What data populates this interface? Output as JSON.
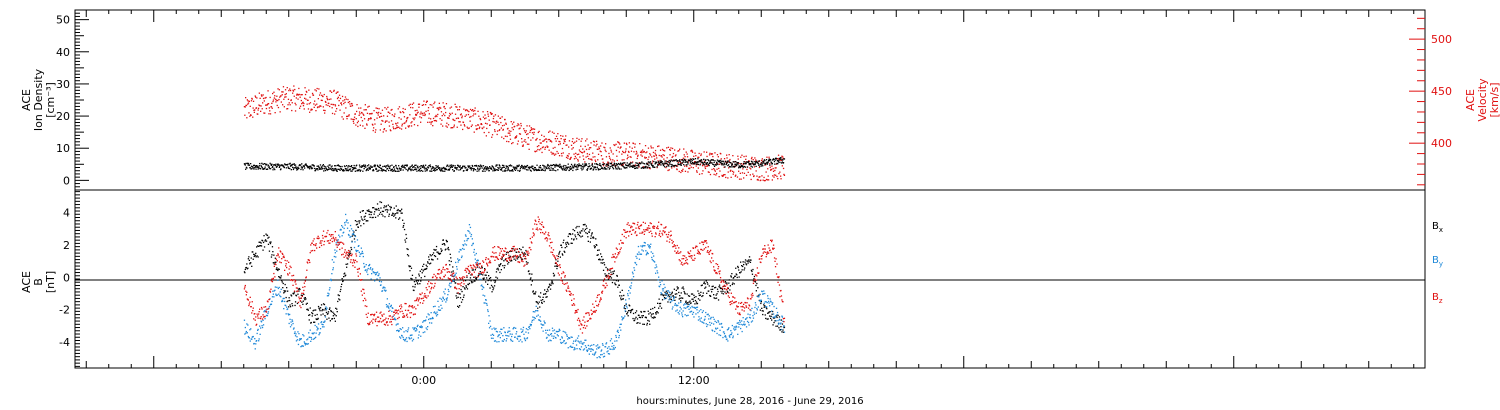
{
  "colors": {
    "black": "#000000",
    "red": "#e01010",
    "blue": "#1e88d8"
  },
  "chart_data": [
    {
      "type": "scatter",
      "panel": "top",
      "ylabel": [
        "ACE",
        "Ion Density",
        "[cm⁻³]"
      ],
      "ylabel_right": [
        "ACE",
        "Velocity",
        "[km/s]"
      ],
      "ylim": [
        -3,
        53
      ],
      "ylim_right": [
        355,
        528
      ],
      "yticks": [
        0,
        10,
        20,
        30,
        40,
        50
      ],
      "yticks_right": [
        400,
        450,
        500
      ],
      "series": [
        {
          "axis": "left",
          "color": "black",
          "values_hours": [
            -8,
            -6,
            -4,
            -2,
            0,
            2,
            4,
            6,
            8,
            10,
            12,
            13,
            14,
            15,
            16
          ],
          "values": [
            4.5,
            4.5,
            4.0,
            4.0,
            4.0,
            4.0,
            4.0,
            4.2,
            4.5,
            5.0,
            6.0,
            5.5,
            5.0,
            5.5,
            6.5
          ]
        },
        {
          "axis": "right",
          "color": "red",
          "values_hours": [
            -8,
            -7,
            -6,
            -5,
            -4,
            -3,
            -2,
            -1,
            0,
            1,
            2,
            3,
            4,
            5,
            6,
            7,
            8,
            9,
            10,
            11,
            12,
            13,
            14,
            15,
            16
          ],
          "values": [
            432,
            440,
            444,
            442,
            440,
            428,
            422,
            426,
            430,
            428,
            424,
            418,
            410,
            404,
            400,
            394,
            390,
            390,
            388,
            386,
            382,
            380,
            378,
            376,
            378
          ]
        }
      ]
    },
    {
      "type": "scatter",
      "panel": "bottom",
      "ylabel": [
        "ACE",
        "B",
        "[nT]"
      ],
      "ylim": [
        -5.6,
        5.4
      ],
      "yticks": [
        -4,
        -2,
        0,
        2,
        4
      ],
      "legend": [
        {
          "text": "B",
          "sub": "x",
          "color": "black"
        },
        {
          "text": "B",
          "sub": "y",
          "color": "blue"
        },
        {
          "text": "B",
          "sub": "z",
          "color": "red"
        }
      ],
      "series": [
        {
          "color": "black",
          "values_hours": [
            -8,
            -7.5,
            -7,
            -6.5,
            -6,
            -5.5,
            -5,
            -4.5,
            -4,
            -3.5,
            -3,
            -2.5,
            -2,
            -1.5,
            -1,
            -0.5,
            0,
            0.5,
            1,
            1.5,
            2,
            2.5,
            3,
            3.5,
            4,
            4.5,
            5,
            5.5,
            6,
            6.5,
            7,
            7.5,
            8,
            8.5,
            9,
            9.5,
            10,
            10.5,
            11,
            11.5,
            12,
            12.5,
            13,
            13.5,
            14,
            14.5,
            15,
            15.5,
            16
          ],
          "values": [
            0.5,
            1.5,
            2.5,
            0.5,
            -1.5,
            -1.0,
            -2.5,
            -2.0,
            -2.5,
            0.5,
            3.5,
            4.0,
            4.3,
            4.0,
            4.0,
            -0.5,
            0.5,
            1.5,
            2.2,
            -1.5,
            0.0,
            0.5,
            -0.5,
            1.0,
            1.5,
            1.5,
            -1.5,
            -1.0,
            1.5,
            2.5,
            3.0,
            2.5,
            0.5,
            0.0,
            -2.0,
            -2.5,
            -2.5,
            -1.5,
            -1.0,
            -1.0,
            -1.5,
            -0.5,
            -1.0,
            -0.5,
            0.5,
            1.0,
            -2.0,
            -2.5,
            -3.0
          ]
        },
        {
          "color": "blue",
          "values_hours": [
            -8,
            -7.5,
            -7,
            -6.5,
            -6,
            -5.5,
            -5,
            -4.5,
            -4,
            -3.5,
            -3,
            -2.5,
            -2,
            -1.5,
            -1,
            -0.5,
            0,
            0.5,
            1,
            1.5,
            2,
            2.5,
            3,
            3.5,
            4,
            4.5,
            5,
            5.5,
            6,
            6.5,
            7,
            7.5,
            8,
            8.5,
            9,
            9.5,
            10,
            10.5,
            11,
            11.5,
            12,
            12.5,
            13,
            13.5,
            14,
            14.5,
            15,
            15.5,
            16
          ],
          "values": [
            -3.0,
            -4.0,
            -2.0,
            -0.5,
            -2.5,
            -4.0,
            -3.5,
            -3.0,
            1.5,
            3.5,
            2.0,
            0.5,
            0.0,
            -2.0,
            -3.5,
            -3.5,
            -3.0,
            -2.0,
            -1.0,
            1.0,
            3.0,
            0.0,
            -3.5,
            -3.5,
            -3.5,
            -3.5,
            -2.0,
            -3.5,
            -3.5,
            -4.0,
            -4.0,
            -4.5,
            -4.5,
            -4.0,
            -1.5,
            1.5,
            2.0,
            -0.5,
            -1.5,
            -2.0,
            -2.0,
            -2.5,
            -3.0,
            -3.5,
            -3.0,
            -2.5,
            -1.0,
            -2.0,
            -3.0
          ]
        },
        {
          "color": "red",
          "values_hours": [
            -8,
            -7.5,
            -7,
            -6.5,
            -6,
            -5.5,
            -5,
            -4.5,
            -4,
            -3.5,
            -3,
            -2.5,
            -2,
            -1.5,
            -1,
            -0.5,
            0,
            0.5,
            1,
            1.5,
            2,
            2.5,
            3,
            3.5,
            4,
            4.5,
            5,
            5.5,
            6,
            6.5,
            7,
            7.5,
            8,
            8.5,
            9,
            9.5,
            10,
            10.5,
            11,
            11.5,
            12,
            12.5,
            13,
            13.5,
            14,
            14.5,
            15,
            15.5,
            16
          ],
          "values": [
            -0.5,
            -2.5,
            -2.0,
            1.5,
            0.5,
            -1.5,
            2.0,
            2.5,
            2.5,
            1.5,
            1.0,
            -2.5,
            -2.5,
            -2.5,
            -2.0,
            -2.0,
            -1.0,
            0.0,
            0.5,
            -0.5,
            0.5,
            0.5,
            1.5,
            1.5,
            1.5,
            1.0,
            3.5,
            2.5,
            0.5,
            -1.0,
            -3.0,
            -2.0,
            -0.5,
            1.5,
            3.0,
            3.0,
            3.0,
            3.0,
            2.5,
            1.0,
            1.5,
            2.0,
            0.5,
            -1.0,
            -2.0,
            -1.5,
            1.5,
            2.0,
            -2.5
          ]
        }
      ]
    }
  ],
  "xaxis": {
    "range_hours": [
      -15.5,
      44.5
    ],
    "major_tick_labels": [
      {
        "hours": 0,
        "label": "0:00"
      },
      {
        "hours": 12,
        "label": "12:00"
      }
    ],
    "title": "hours:minutes, June 28, 2016 - June 29, 2016"
  }
}
